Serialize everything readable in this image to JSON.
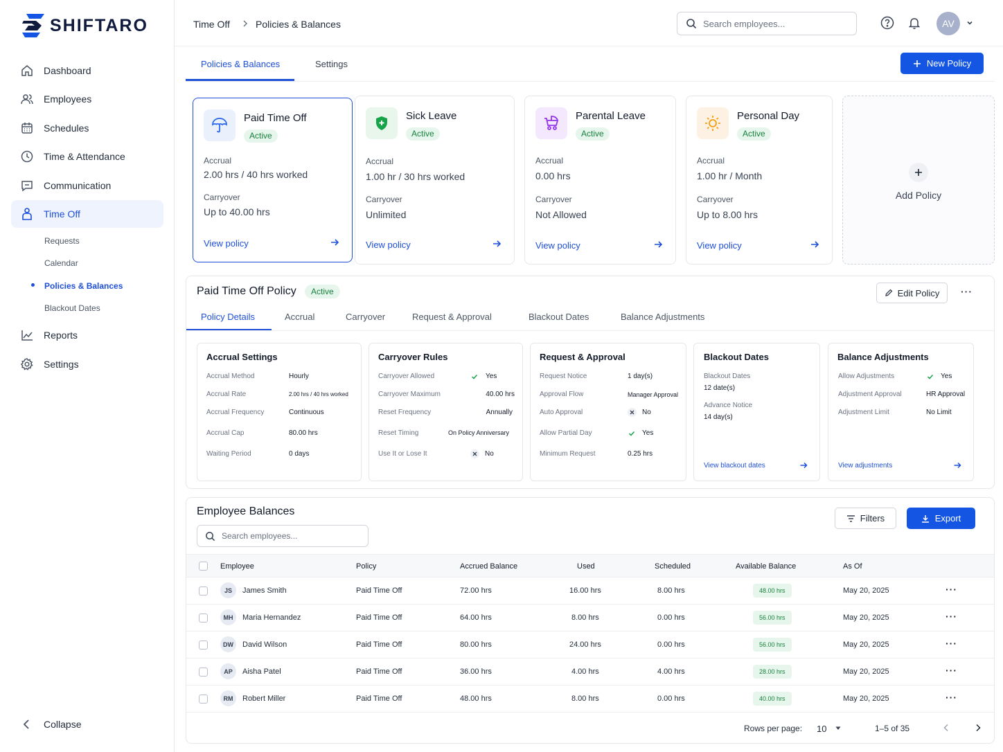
{
  "brand": {
    "name": "SHIFTARO"
  },
  "sidebar": {
    "items": [
      {
        "label": "Dashboard"
      },
      {
        "label": "Employees"
      },
      {
        "label": "Schedules"
      },
      {
        "label": "Time & Attendance"
      },
      {
        "label": "Communication"
      },
      {
        "label": "Time Off"
      },
      {
        "label": "Reports"
      },
      {
        "label": "Settings"
      }
    ],
    "sub_items": [
      {
        "label": "Requests"
      },
      {
        "label": "Calendar"
      },
      {
        "label": "Policies & Balances"
      },
      {
        "label": "Blackout Dates"
      }
    ],
    "collapse": "Collapse"
  },
  "header": {
    "breadcrumb": [
      "Time Off",
      "Policies & Balances"
    ],
    "search_placeholder": "Search employees...",
    "avatar_initials": "AV"
  },
  "tabs": [
    {
      "label": "Policies & Balances"
    },
    {
      "label": "Settings"
    }
  ],
  "new_policy_label": "New Policy",
  "policies": [
    {
      "title": "Paid Time Off",
      "status": "Active",
      "accrual_label": "Accrual",
      "accrual": "2.00 hrs / 40 hrs worked",
      "carryover_label": "Carryover",
      "carryover": "Up to 40.00 hrs",
      "link": "View policy",
      "color": "#2563eb"
    },
    {
      "title": "Sick Leave",
      "status": "Active",
      "accrual_label": "Accrual",
      "accrual": "1.00 hr / 30 hrs worked",
      "carryover_label": "Carryover",
      "carryover": "Unlimited",
      "link": "View policy",
      "color": "#16a34a"
    },
    {
      "title": "Parental Leave",
      "status": "Active",
      "accrual_label": "Accrual",
      "accrual": "0.00 hrs",
      "carryover_label": "Carryover",
      "carryover": "Not Allowed",
      "link": "View policy",
      "color": "#9333ea"
    },
    {
      "title": "Personal Day",
      "status": "Active",
      "accrual_label": "Accrual",
      "accrual": "1.00 hr / Month",
      "carryover_label": "Carryover",
      "carryover": "Up to 8.00 hrs",
      "link": "View policy",
      "color": "#f59e0b"
    }
  ],
  "add_policy_label": "Add Policy",
  "detail": {
    "title": "Paid Time Off Policy",
    "status": "Active",
    "edit_label": "Edit Policy",
    "tabs": [
      "Policy Details",
      "Accrual",
      "Carryover",
      "Request & Approval",
      "Blackout Dates",
      "Balance Adjustments"
    ],
    "accrual": {
      "title": "Accrual Settings",
      "rows": [
        {
          "k": "Accrual Method",
          "v": "Hourly"
        },
        {
          "k": "Accrual Rate",
          "v": "2.00 hrs / 40 hrs worked"
        },
        {
          "k": "Accrual Frequency",
          "v": "Continuous"
        },
        {
          "k": "Accrual Cap",
          "v": "80.00 hrs"
        },
        {
          "k": "Waiting Period",
          "v": "0 days"
        }
      ]
    },
    "carryover": {
      "title": "Carryover Rules",
      "rows": [
        {
          "k": "Carryover Allowed",
          "v": "Yes"
        },
        {
          "k": "Carryover Maximum",
          "v": "40.00 hrs"
        },
        {
          "k": "Reset Frequency",
          "v": "Annually"
        },
        {
          "k": "Reset Timing",
          "v": "On Policy Anniversary"
        },
        {
          "k": "Use It or Lose It",
          "v": "No"
        }
      ]
    },
    "request": {
      "title": "Request & Approval",
      "rows": [
        {
          "k": "Request Notice",
          "v": "1 day(s)"
        },
        {
          "k": "Approval Flow",
          "v": "Manager Approval"
        },
        {
          "k": "Auto Approval",
          "v": "No"
        },
        {
          "k": "Allow Partial Day",
          "v": "Yes"
        },
        {
          "k": "Minimum Request",
          "v": "0.25 hrs"
        }
      ]
    },
    "blackout": {
      "title": "Blackout Dates",
      "k1": "Blackout Dates",
      "v1": "12 date(s)",
      "k2": "Advance Notice",
      "v2": "14 day(s)",
      "link": "View blackout dates"
    },
    "adjust": {
      "title": "Balance Adjustments",
      "rows": [
        {
          "k": "Allow Adjustments",
          "v": "Yes"
        },
        {
          "k": "Adjustment Approval",
          "v": "HR Approval"
        },
        {
          "k": "Adjustment Limit",
          "v": "No Limit"
        }
      ],
      "link": "View adjustments"
    }
  },
  "balances": {
    "title": "Employee Balances",
    "filters_label": "Filters",
    "export_label": "Export",
    "search_placeholder": "Search employees...",
    "columns": [
      "Employee",
      "Policy",
      "Accrued Balance",
      "Used",
      "Scheduled",
      "Available Balance",
      "As Of"
    ],
    "rows": [
      {
        "initials": "JS",
        "name": "James Smith",
        "policy": "Paid Time Off",
        "accrued": "72.00 hrs",
        "used": "16.00 hrs",
        "scheduled": "8.00 hrs",
        "available": "48.00 hrs",
        "as_of": "May 20, 2025"
      },
      {
        "initials": "MH",
        "name": "Maria Hernandez",
        "policy": "Paid Time Off",
        "accrued": "64.00 hrs",
        "used": "8.00 hrs",
        "scheduled": "0.00 hrs",
        "available": "56.00 hrs",
        "as_of": "May 20, 2025"
      },
      {
        "initials": "DW",
        "name": "David Wilson",
        "policy": "Paid Time Off",
        "accrued": "80.00 hrs",
        "used": "24.00 hrs",
        "scheduled": "0.00 hrs",
        "available": "56.00 hrs",
        "as_of": "May 20, 2025"
      },
      {
        "initials": "AP",
        "name": "Aisha Patel",
        "policy": "Paid Time Off",
        "accrued": "36.00 hrs",
        "used": "4.00 hrs",
        "scheduled": "4.00 hrs",
        "available": "28.00 hrs",
        "as_of": "May 20, 2025"
      },
      {
        "initials": "RM",
        "name": "Robert Miller",
        "policy": "Paid Time Off",
        "accrued": "48.00 hrs",
        "used": "8.00 hrs",
        "scheduled": "0.00 hrs",
        "available": "40.00 hrs",
        "as_of": "May 20, 2025"
      }
    ],
    "rows_per_page_label": "Rows per page:",
    "rows_per_page": "10",
    "range": "1–5 of 35"
  },
  "colors": {
    "accent": "#1456e3",
    "success": "#16803c"
  }
}
